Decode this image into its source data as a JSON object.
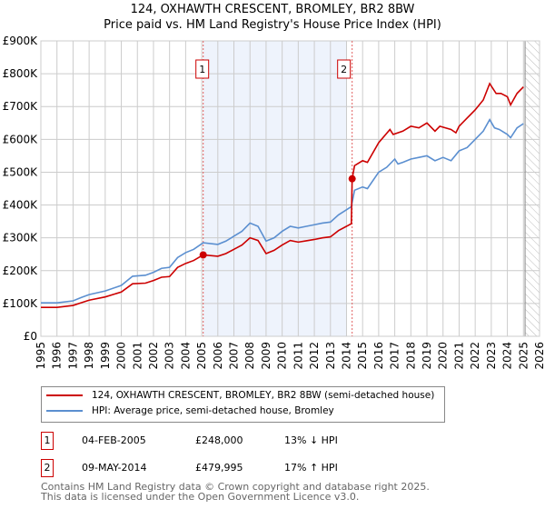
{
  "chart_data": {
    "type": "line",
    "title": "124, OXHAWTH CRESCENT, BROMLEY, BR2 8BW",
    "subtitle": "Price paid vs. HM Land Registry's House Price Index (HPI)",
    "xlim": [
      1995,
      2026
    ],
    "ylim": [
      0,
      900000
    ],
    "y_ticks": [
      {
        "v": 0,
        "label": "£0"
      },
      {
        "v": 100000,
        "label": "£100K"
      },
      {
        "v": 200000,
        "label": "£200K"
      },
      {
        "v": 300000,
        "label": "£300K"
      },
      {
        "v": 400000,
        "label": "£400K"
      },
      {
        "v": 500000,
        "label": "£500K"
      },
      {
        "v": 600000,
        "label": "£600K"
      },
      {
        "v": 700000,
        "label": "£700K"
      },
      {
        "v": 800000,
        "label": "£800K"
      },
      {
        "v": 900000,
        "label": "£900K"
      }
    ],
    "x_ticks": [
      "1995",
      "1996",
      "1997",
      "1998",
      "1999",
      "2000",
      "2001",
      "2002",
      "2003",
      "2004",
      "2005",
      "2006",
      "2007",
      "2008",
      "2009",
      "2010",
      "2011",
      "2012",
      "2013",
      "2014",
      "2015",
      "2016",
      "2017",
      "2018",
      "2019",
      "2020",
      "2021",
      "2022",
      "2023",
      "2024",
      "2025",
      "2026"
    ],
    "grid": true,
    "shaded_range": [
      2005.09,
      2014.0
    ],
    "forecast_hatch_from": 2025.1,
    "colors": {
      "property": "#cc0000",
      "hpi": "#5b8fd0",
      "shade": "#eef3fc"
    },
    "series": [
      {
        "name": "124, OXHAWTH CRESCENT, BROMLEY, BR2 8BW (semi-detached house)",
        "x": [
          1995,
          1996,
          1997,
          1997.5,
          1998,
          1999,
          2000,
          2000.7,
          2001.5,
          2002,
          2002.5,
          2003,
          2003.5,
          2004,
          2004.5,
          2005.09,
          2006,
          2006.5,
          2007,
          2007.5,
          2008,
          2008.5,
          2009,
          2009.5,
          2010,
          2010.5,
          2011,
          2011.5,
          2012,
          2012.5,
          2013,
          2013.5,
          2014.3,
          2014.35,
          2014.5,
          2015,
          2015.3,
          2016,
          2016.7,
          2016.9,
          2017.5,
          2018,
          2018.5,
          2019,
          2019.5,
          2019.8,
          2020.5,
          2020.8,
          2021,
          2021.5,
          2022,
          2022.5,
          2022.9,
          2023.3,
          2023.6,
          2024,
          2024.2,
          2024.6,
          2025
        ],
        "y": [
          88000,
          88000,
          94000,
          102000,
          110000,
          120000,
          135000,
          160000,
          162000,
          170000,
          180000,
          182000,
          210000,
          222000,
          231000,
          248000,
          244000,
          252000,
          265000,
          278000,
          300000,
          292000,
          252000,
          262000,
          278000,
          292000,
          287000,
          291000,
          295000,
          300000,
          303000,
          322000,
          343000,
          479995,
          520000,
          535000,
          530000,
          590000,
          630000,
          615000,
          625000,
          640000,
          635000,
          650000,
          625000,
          640000,
          630000,
          620000,
          640000,
          665000,
          690000,
          720000,
          770000,
          740000,
          740000,
          730000,
          705000,
          740000,
          760000
        ]
      },
      {
        "name": "HPI: Average price, semi-detached house, Bromley",
        "x": [
          1995,
          1996,
          1997,
          1997.5,
          1998,
          1999,
          2000,
          2000.7,
          2001.5,
          2002,
          2002.5,
          2003,
          2003.5,
          2004,
          2004.5,
          2005.09,
          2006,
          2006.5,
          2007,
          2007.5,
          2008,
          2008.5,
          2009,
          2009.5,
          2010,
          2010.5,
          2011,
          2011.5,
          2012,
          2012.5,
          2013,
          2013.5,
          2014.3,
          2014.5,
          2015,
          2015.3,
          2016,
          2016.5,
          2017,
          2017.2,
          2017.5,
          2018,
          2018.5,
          2019,
          2019.5,
          2020,
          2020.5,
          2021,
          2021.5,
          2022,
          2022.5,
          2022.9,
          2023.2,
          2023.5,
          2024,
          2024.2,
          2024.6,
          2025
        ],
        "y": [
          102000,
          102000,
          108000,
          118000,
          127000,
          138000,
          155000,
          183000,
          186000,
          195000,
          207000,
          210000,
          240000,
          255000,
          265000,
          285000,
          280000,
          290000,
          305000,
          320000,
          345000,
          335000,
          290000,
          300000,
          320000,
          335000,
          330000,
          335000,
          340000,
          345000,
          348000,
          370000,
          395000,
          445000,
          455000,
          450000,
          500000,
          515000,
          540000,
          525000,
          530000,
          540000,
          545000,
          550000,
          535000,
          545000,
          535000,
          565000,
          575000,
          600000,
          625000,
          660000,
          635000,
          630000,
          615000,
          605000,
          635000,
          648000
        ]
      }
    ],
    "annotations": [
      {
        "label": "1",
        "x": 2005.09,
        "y": 248000
      },
      {
        "label": "2",
        "x": 2014.35,
        "y": 479995
      }
    ]
  },
  "legend": {
    "property": "124, OXHAWTH CRESCENT, BROMLEY, BR2 8BW (semi-detached house)",
    "hpi": "HPI: Average price, semi-detached house, Bromley"
  },
  "transactions": [
    {
      "num": "1",
      "date": "04-FEB-2005",
      "price": "£248,000",
      "hpi": "13% ↓ HPI"
    },
    {
      "num": "2",
      "date": "09-MAY-2014",
      "price": "£479,995",
      "hpi": "17% ↑ HPI"
    }
  ],
  "footer": {
    "line1": "Contains HM Land Registry data © Crown copyright and database right 2025.",
    "line2": "This data is licensed under the Open Government Licence v3.0."
  }
}
